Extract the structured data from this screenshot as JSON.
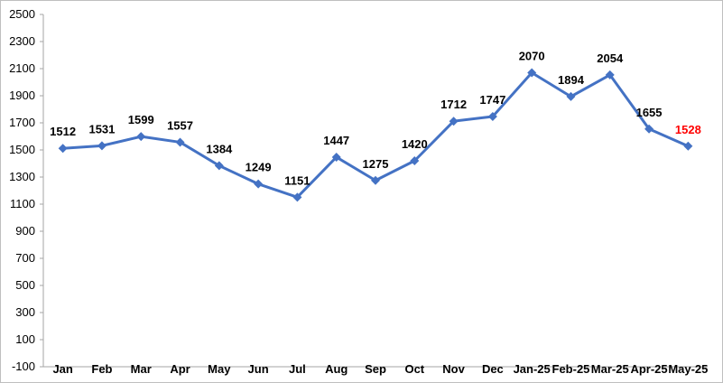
{
  "chart_data": {
    "type": "line",
    "title": "",
    "xlabel": "",
    "ylabel": "",
    "categories": [
      "Jan",
      "Feb",
      "Mar",
      "Apr",
      "May",
      "Jun",
      "Jul",
      "Aug",
      "Sep",
      "Oct",
      "Nov",
      "Dec",
      "Jan-25",
      "Feb-25",
      "Mar-25",
      "Apr-25",
      "May-25"
    ],
    "series": [
      {
        "values": [
          1512,
          1531,
          1599,
          1557,
          1384,
          1249,
          1151,
          1447,
          1275,
          1420,
          1712,
          1747,
          2070,
          1894,
          2054,
          1655,
          1528
        ],
        "color": "#4472c4",
        "marker": "diamond"
      }
    ],
    "ylim": [
      -100,
      2500
    ],
    "yticks": [
      -100,
      100,
      300,
      500,
      700,
      900,
      1100,
      1300,
      1500,
      1700,
      1900,
      2100,
      2300,
      2500
    ],
    "grid": false,
    "legend": "none",
    "label_color": "#000000",
    "highlight_label_color": "#ff0000",
    "highlight_index": 16,
    "axis_color": "#a6a6a6"
  }
}
